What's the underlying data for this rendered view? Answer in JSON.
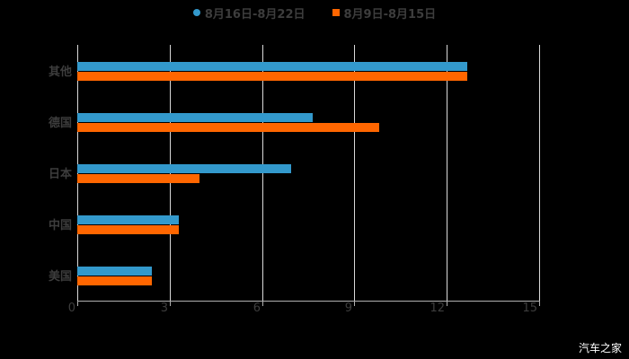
{
  "chart_data": {
    "type": "bar",
    "orientation": "horizontal",
    "title": "",
    "categories": [
      "其他",
      "德国",
      "日本",
      "中国",
      "美国"
    ],
    "series": [
      {
        "name": "8月16日-8月22日",
        "color": "#3399cc",
        "values": [
          12.67,
          7.66,
          6.96,
          3.29,
          2.42
        ]
      },
      {
        "name": "8月9日-8月15日",
        "color": "#ff6600",
        "values": [
          12.67,
          9.82,
          3.96,
          3.29,
          2.42
        ]
      }
    ],
    "xlabel": "",
    "ylabel": "",
    "xlim": [
      0,
      15
    ],
    "xticks": [
      "0",
      "3",
      "6",
      "9",
      "12",
      "15"
    ],
    "grid": true,
    "legend_position": "top"
  },
  "legend": [
    {
      "label": "8月16日-8月22日",
      "color": "#3399cc"
    },
    {
      "label": "8月9日-8月15日",
      "color": "#ff6600"
    }
  ],
  "watermark": "汽车之家"
}
